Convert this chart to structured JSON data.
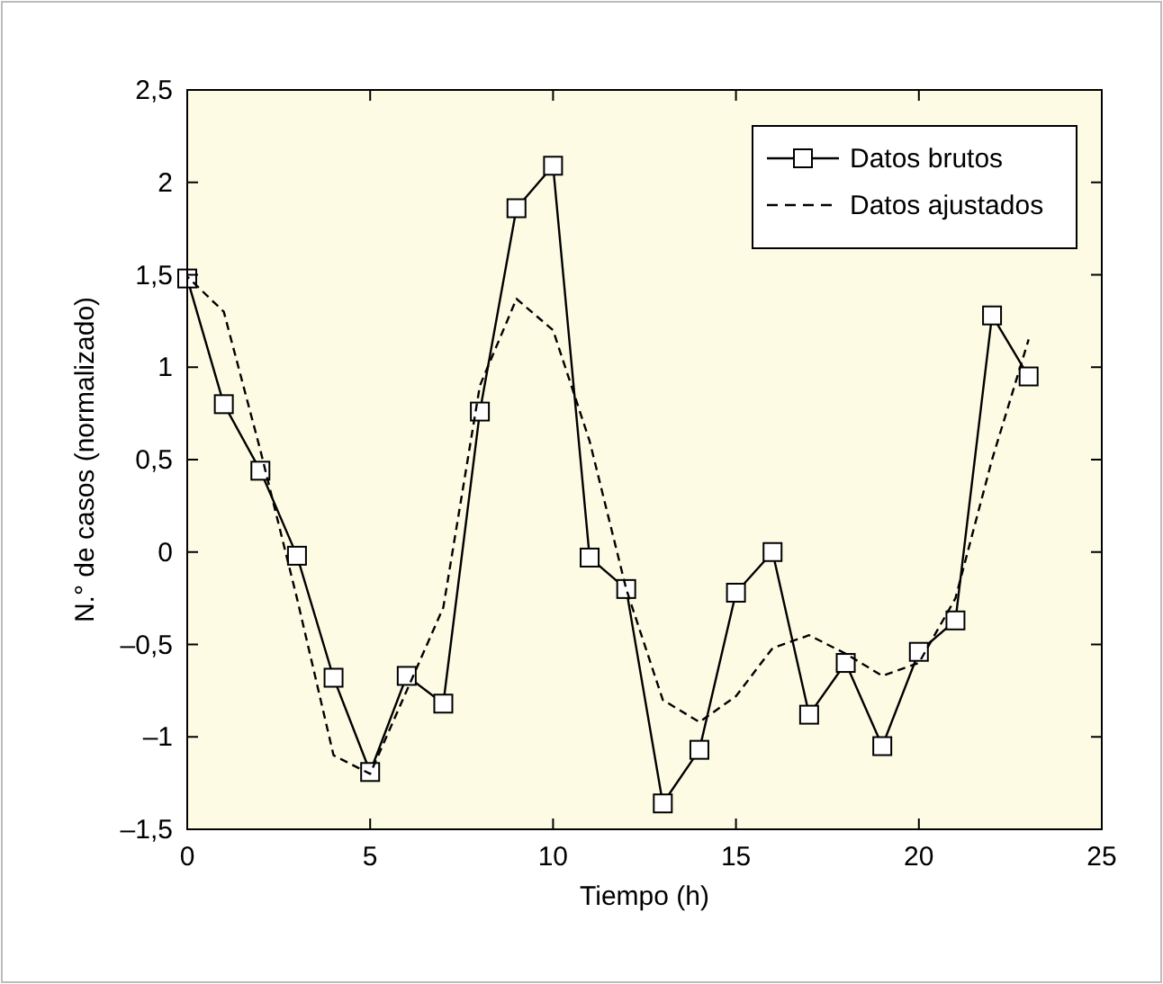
{
  "chart_data": {
    "type": "line",
    "xlabel": "Tiempo (h)",
    "ylabel": "N.° de casos (normalizado)",
    "xlim": [
      0,
      25
    ],
    "xticks": [
      0,
      5,
      10,
      15,
      20,
      25
    ],
    "ylim": [
      -1.5,
      2.5
    ],
    "yticks": [
      {
        "value": -1.5,
        "label": "–1,5"
      },
      {
        "value": -1,
        "label": "–1"
      },
      {
        "value": -0.5,
        "label": "–0,5"
      },
      0,
      {
        "value": 0.5,
        "label": "0,5"
      },
      1,
      {
        "value": 1.5,
        "label": "1,5"
      },
      2,
      {
        "value": 2.5,
        "label": "2,5"
      }
    ],
    "grid": false,
    "legend": "top right",
    "x": [
      0,
      1,
      2,
      3,
      4,
      5,
      6,
      7,
      8,
      9,
      10,
      11,
      12,
      13,
      14,
      15,
      16,
      17,
      18,
      19,
      20,
      21,
      22,
      23
    ],
    "series": [
      {
        "name": "Datos brutos",
        "color": "#000000",
        "marker": "square",
        "line_style": "solid",
        "values": [
          1.48,
          0.8,
          0.44,
          -0.02,
          -0.68,
          -1.19,
          -0.67,
          -0.82,
          0.76,
          1.86,
          2.09,
          -0.03,
          -0.2,
          -1.36,
          -1.07,
          -0.22,
          0.0,
          -0.88,
          -0.6,
          -1.05,
          -0.54,
          -0.37,
          1.28,
          0.95
        ]
      },
      {
        "name": "Datos ajustados",
        "color": "#000000",
        "marker": "none",
        "line_style": "dashed",
        "values": [
          1.49,
          1.3,
          0.55,
          -0.25,
          -1.1,
          -1.2,
          -0.75,
          -0.3,
          0.9,
          1.37,
          1.2,
          0.6,
          -0.2,
          -0.8,
          -0.92,
          -0.78,
          -0.52,
          -0.45,
          -0.55,
          -0.67,
          -0.6,
          -0.25,
          0.5,
          1.15
        ]
      }
    ]
  }
}
